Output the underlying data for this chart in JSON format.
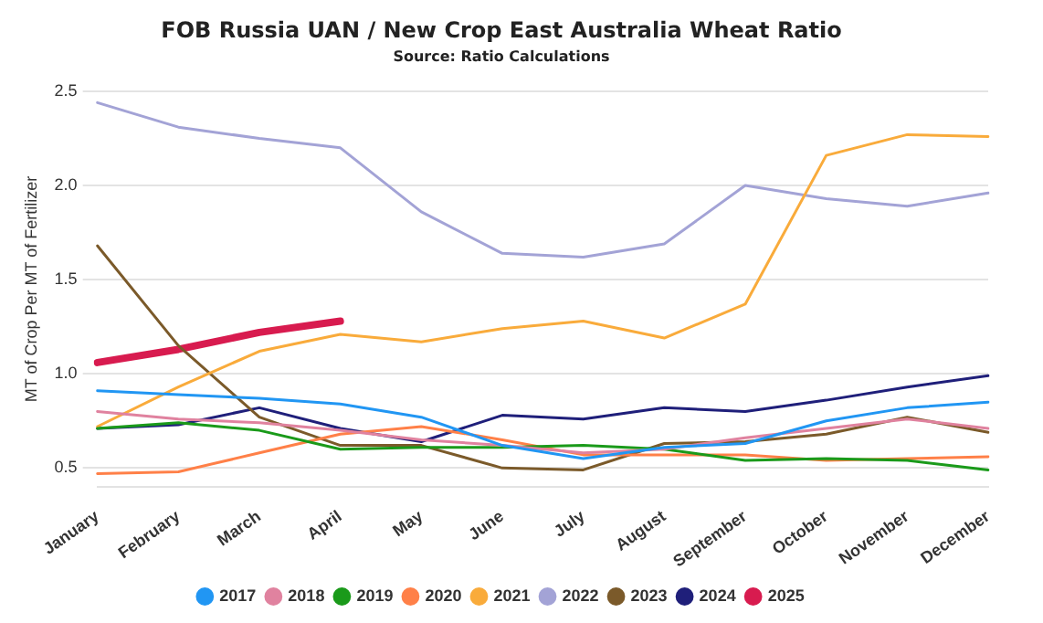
{
  "chart_data": {
    "type": "line",
    "title": "FOB Russia UAN / New Crop East Australia Wheat Ratio",
    "subtitle": "Source: Ratio Calculations",
    "ylabel": "MT of Crop Per MT of Fertilizer",
    "categories": [
      "January",
      "February",
      "March",
      "April",
      "May",
      "June",
      "July",
      "August",
      "September",
      "October",
      "November",
      "December"
    ],
    "series": [
      {
        "name": "2017",
        "color": "#2196f3",
        "values": [
          0.91,
          0.89,
          0.87,
          0.84,
          0.77,
          0.62,
          0.55,
          0.61,
          0.63,
          0.75,
          0.82,
          0.85
        ]
      },
      {
        "name": "2018",
        "color": "#e0829f",
        "values": [
          0.8,
          0.76,
          0.74,
          0.7,
          0.65,
          0.62,
          0.58,
          0.6,
          0.66,
          0.71,
          0.76,
          0.71
        ]
      },
      {
        "name": "2019",
        "color": "#1a9a1a",
        "values": [
          0.71,
          0.74,
          0.7,
          0.6,
          0.61,
          0.61,
          0.62,
          0.6,
          0.54,
          0.55,
          0.54,
          0.49
        ]
      },
      {
        "name": "2020",
        "color": "#ff8048",
        "values": [
          0.47,
          0.48,
          0.58,
          0.68,
          0.72,
          0.65,
          0.57,
          0.57,
          0.57,
          0.54,
          0.55,
          0.56
        ]
      },
      {
        "name": "2021",
        "color": "#f9ab3b",
        "values": [
          0.72,
          0.93,
          1.12,
          1.21,
          1.17,
          1.24,
          1.28,
          1.19,
          1.37,
          2.16,
          2.27,
          2.26
        ]
      },
      {
        "name": "2022",
        "color": "#a3a3d6",
        "values": [
          2.44,
          2.31,
          2.25,
          2.2,
          1.86,
          1.64,
          1.62,
          1.69,
          2.0,
          1.93,
          1.89,
          1.96
        ]
      },
      {
        "name": "2023",
        "color": "#7b5a2a",
        "values": [
          1.68,
          1.15,
          0.77,
          0.62,
          0.62,
          0.5,
          0.49,
          0.63,
          0.64,
          0.68,
          0.77,
          0.69
        ]
      },
      {
        "name": "2024",
        "color": "#1f1f7a",
        "values": [
          0.71,
          0.73,
          0.82,
          0.71,
          0.64,
          0.78,
          0.76,
          0.82,
          0.8,
          0.86,
          0.93,
          0.99
        ]
      },
      {
        "name": "2025",
        "color": "#d81b4f",
        "values": [
          1.06,
          1.13,
          1.22,
          1.28,
          null,
          null,
          null,
          null,
          null,
          null,
          null,
          null
        ]
      }
    ],
    "ylim": [
      0.4,
      2.5
    ],
    "yticks": [
      0.5,
      {
        "value": 1,
        "label": "1.0"
      },
      1.5,
      {
        "value": 2,
        "label": "2.0"
      },
      2.5
    ],
    "grid": "y",
    "legend": "bottom",
    "marker": "none",
    "line_style": "solid"
  }
}
